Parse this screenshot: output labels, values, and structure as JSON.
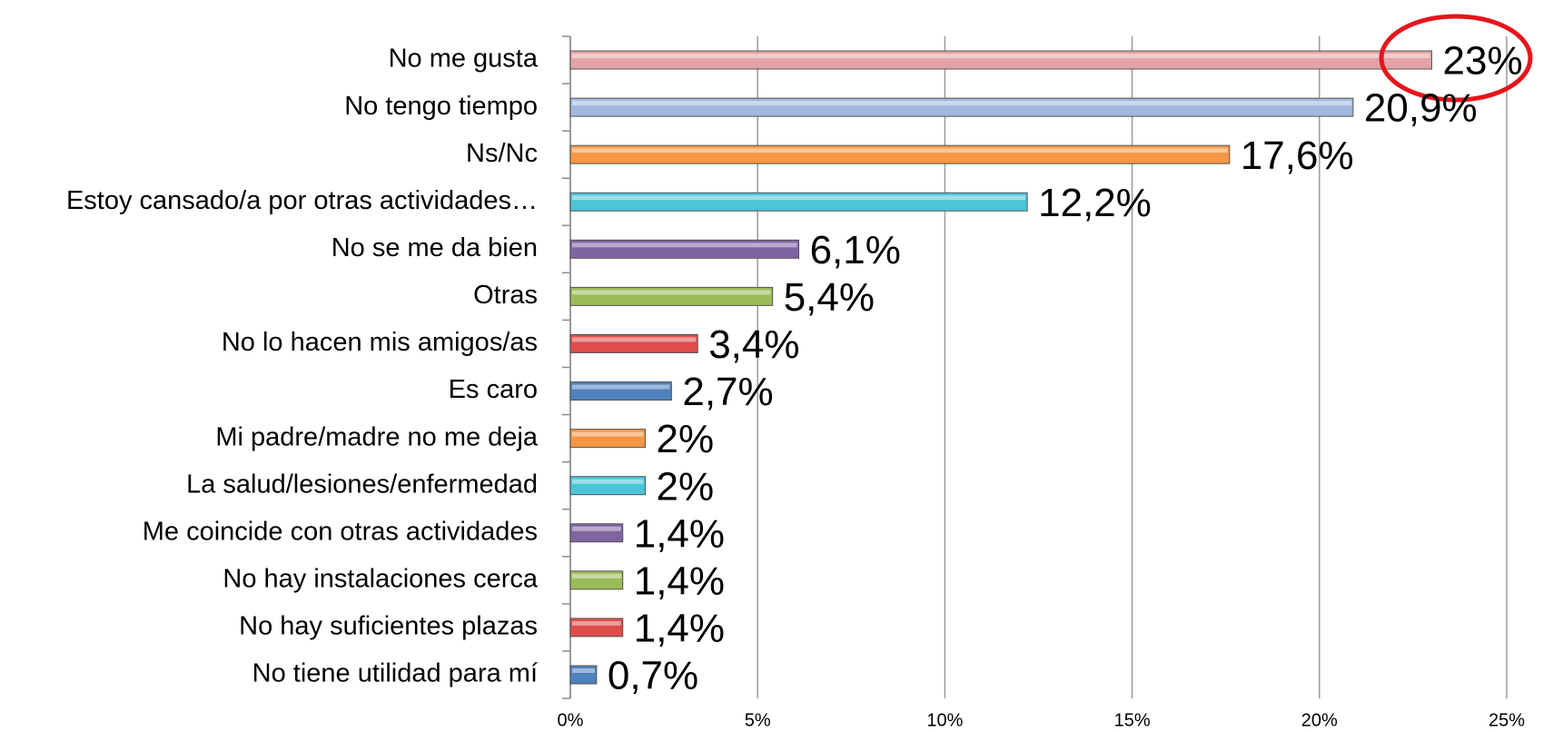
{
  "chart_data": {
    "type": "bar",
    "orientation": "horizontal",
    "categories": [
      "No me gusta",
      "No tengo tiempo",
      "Ns/Nc",
      "Estoy cansado/a  por otras actividades…",
      "No se me da bien",
      "Otras",
      "No lo hacen mis amigos/as",
      "Es caro",
      "Mi padre/madre no me deja",
      "La salud/lesiones/enfermedad",
      "Me coincide con otras actividades",
      "No hay instalaciones cerca",
      "No hay suficientes plazas",
      "No tiene utilidad para mí"
    ],
    "values": [
      23,
      20.9,
      17.6,
      12.2,
      6.1,
      5.4,
      3.4,
      2.7,
      2,
      2,
      1.4,
      1.4,
      1.4,
      0.7
    ],
    "value_labels": [
      "23%",
      "20,9%",
      "17,6%",
      "12,2%",
      "6,1%",
      "5,4%",
      "3,4%",
      "2,7%",
      "2%",
      "2%",
      "1,4%",
      "1,4%",
      "1,4%",
      "0,7%"
    ],
    "colors": [
      "#e3a3a6",
      "#a3b8de",
      "#f79646",
      "#4bc4d8",
      "#8064a2",
      "#9bbb59",
      "#e04b4b",
      "#4f81bd",
      "#f79646",
      "#4bc4d8",
      "#8064a2",
      "#9bbb59",
      "#e04b4b",
      "#4f81bd"
    ],
    "xlim": [
      0,
      25
    ],
    "xticks": [
      {
        "value": 0,
        "label": "0%"
      },
      {
        "value": 5,
        "label": "5%"
      },
      {
        "value": 10,
        "label": "10%"
      },
      {
        "value": 15,
        "label": "15%"
      },
      {
        "value": 20,
        "label": "20%"
      },
      {
        "value": 25,
        "label": "25%"
      }
    ],
    "grid": true
  }
}
